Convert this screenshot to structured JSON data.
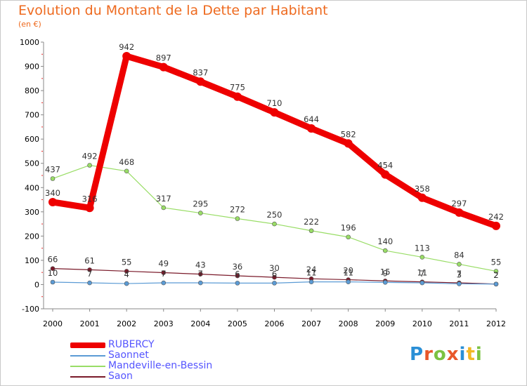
{
  "chart_data": {
    "type": "line",
    "title": "Evolution du Montant de la Dette par Habitant",
    "subtitle": "(en €)",
    "xlabel": "",
    "ylabel": "",
    "x": [
      "2000",
      "2001",
      "2002",
      "2003",
      "2004",
      "2005",
      "2006",
      "2007",
      "2008",
      "2009",
      "2010",
      "2011",
      "2012"
    ],
    "ylim": [
      -100,
      1000
    ],
    "yticks": [
      "-100",
      "0",
      "100",
      "200",
      "300",
      "400",
      "500",
      "600",
      "700",
      "800",
      "900",
      "1000"
    ],
    "grid": false,
    "legend_position": "bottom-left",
    "series": [
      {
        "name": "RUBERCY",
        "color": "#ee0000",
        "values": [
          340,
          316,
          942,
          897,
          837,
          775,
          710,
          644,
          582,
          454,
          358,
          297,
          242
        ]
      },
      {
        "name": "Saonnet",
        "color": "#5b9bd5",
        "values": [
          10,
          7,
          4,
          7,
          7,
          6,
          6,
          11,
          11,
          9,
          7,
          3,
          2
        ]
      },
      {
        "name": "Mandeville-en-Bessin",
        "color": "#99dd66",
        "values": [
          437,
          492,
          468,
          317,
          295,
          272,
          250,
          222,
          196,
          140,
          113,
          84,
          55
        ]
      },
      {
        "name": "Saon",
        "color": "#7a1a2a",
        "values": [
          66,
          61,
          55,
          49,
          43,
          36,
          30,
          24,
          20,
          15,
          11,
          7,
          2
        ]
      }
    ]
  },
  "labels": {
    "RUBERCY": [
      "340",
      "316",
      "942",
      "897",
      "837",
      "775",
      "710",
      "644",
      "582",
      "454",
      "358",
      "297",
      "242"
    ],
    "Saonnet": [
      "10",
      "7",
      "4",
      "7",
      "7",
      "6",
      "6",
      "11",
      "11",
      "9",
      "7",
      "3",
      "2"
    ],
    "Mandeville-en-Bessin": [
      "437",
      "492",
      "468",
      "317",
      "295",
      "272",
      "250",
      "222",
      "196",
      "140",
      "113",
      "84",
      "55"
    ],
    "Saon": [
      "66",
      "61",
      "55",
      "49",
      "43",
      "36",
      "30",
      "24",
      "20",
      "15",
      "11",
      "7",
      "2"
    ]
  },
  "logo": {
    "letters": [
      "P",
      "r",
      "o",
      "x",
      "i",
      "t",
      "i"
    ],
    "colors": [
      "#2a8fd6",
      "#e8572a",
      "#7cc242",
      "#e8572a",
      "#2a8fd6",
      "#f2b824",
      "#7cc242"
    ]
  }
}
